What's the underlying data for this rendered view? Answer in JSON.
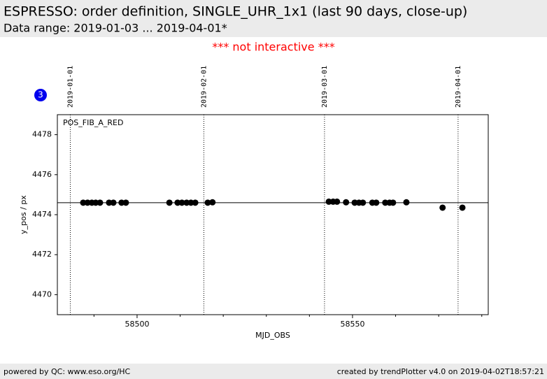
{
  "header": {
    "title": "ESPRESSO: order definition, SINGLE_UHR_1x1 (last 90 days, close-up)",
    "subtitle": "Data range: 2019-01-03 ... 2019-04-01*"
  },
  "notice": "*** not interactive ***",
  "badge": "3",
  "footer": {
    "left": "powered by QC: www.eso.org/HC",
    "right": "created by trendPlotter v4.0 on 2019-04-02T18:57:21"
  },
  "chart_data": {
    "type": "scatter",
    "annotation": "POS_FIB_A_RED",
    "x_label": "MJD_OBS",
    "y_label": "y_pos / px",
    "color": "#000000",
    "x": [
      58487.5,
      58488.5,
      58489.5,
      58490.4,
      58491.4,
      58493.5,
      58494.5,
      58496.4,
      58497.4,
      58507.5,
      58509.4,
      58510.4,
      58511.5,
      58512.5,
      58513.5,
      58516.4,
      58517.5,
      58544.5,
      58545.5,
      58546.4,
      58548.5,
      58550.5,
      58551.5,
      58552.4,
      58554.6,
      58555.5,
      58557.6,
      58558.6,
      58559.4,
      58562.5,
      58570.9,
      58575.5
    ],
    "values": [
      4474.6,
      4474.6,
      4474.6,
      4474.6,
      4474.6,
      4474.6,
      4474.6,
      4474.6,
      4474.6,
      4474.6,
      4474.6,
      4474.6,
      4474.6,
      4474.6,
      4474.6,
      4474.6,
      4474.62,
      4474.65,
      4474.65,
      4474.65,
      4474.62,
      4474.6,
      4474.6,
      4474.6,
      4474.6,
      4474.6,
      4474.6,
      4474.6,
      4474.6,
      4474.62,
      4474.35,
      4474.35
    ],
    "xlim": [
      58481.5,
      58581.5
    ],
    "ylim": [
      4469,
      4479
    ],
    "xticks": [
      58500,
      58550
    ],
    "xminor_ticks": [
      58490,
      58510,
      58520,
      58530,
      58540,
      58560,
      58570,
      58580
    ],
    "yticks": [
      4470,
      4472,
      4474,
      4476,
      4478
    ],
    "reference_line": 4474.6,
    "date_markers": [
      {
        "value": 58484.5,
        "label": "2019-01-01"
      },
      {
        "value": 58515.5,
        "label": "2019-02-01"
      },
      {
        "value": 58543.5,
        "label": "2019-03-01"
      },
      {
        "value": 58574.5,
        "label": "2019-04-01"
      }
    ]
  }
}
